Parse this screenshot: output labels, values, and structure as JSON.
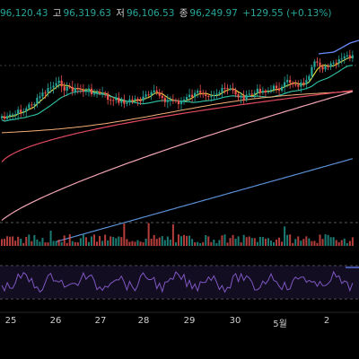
{
  "ohlc": {
    "open_value": "96,120.43",
    "high_label": "고",
    "high_value": "96,319.63",
    "low_label": "저",
    "low_value": "96,106.53",
    "close_label": "종",
    "close_value": "96,249.97",
    "change": "+129.55 (+0.13%)"
  },
  "colors": {
    "background": "#000000",
    "up": "#26a69a",
    "down": "#ef5350",
    "ma_fast": "#f0e442",
    "ma_mid": "#2ec4a6",
    "ma_slow": "#f2a5b4",
    "ma_long": "#e04860",
    "ma_trend": "#5b8fd6",
    "rsi": "#7e57c2"
  },
  "chart_data": {
    "type": "line",
    "title": "",
    "x_labels": [
      "25",
      "26",
      "27",
      "28",
      "29",
      "30",
      "5월",
      "2"
    ],
    "price": {
      "open": 96120.43,
      "high": 96319.63,
      "low": 96106.53,
      "close": 96249.97,
      "change": 129.55,
      "change_pct": 0.13
    },
    "indicators": [
      "price-candles",
      "moving-averages",
      "volume",
      "rsi"
    ]
  },
  "xaxis": {
    "ticks": [
      "25",
      "26",
      "27",
      "28",
      "29",
      "30",
      "5월",
      "2"
    ]
  }
}
